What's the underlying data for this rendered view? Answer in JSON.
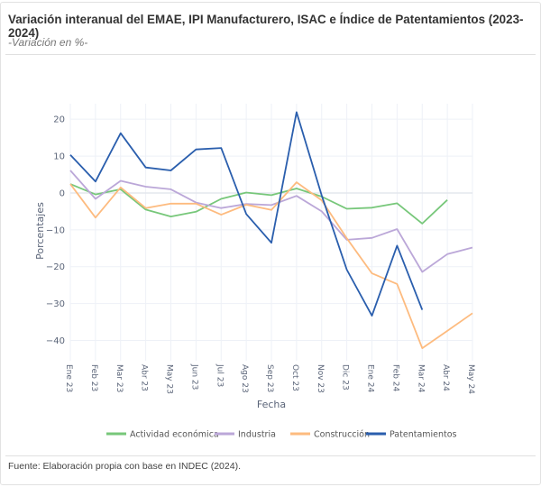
{
  "header": {
    "title": "Variación interanual del EMAE, IPI Manufacturero, ISAC e Índice de Patentamientos (2023-2024)",
    "subtitle": "-Variación en %-"
  },
  "footer": {
    "source": "Fuente: Elaboración propia con base en INDEC (2024)."
  },
  "chart_data": {
    "type": "line",
    "title": "",
    "xlabel": "Fecha",
    "ylabel": "Porcentajes",
    "ylim": [
      -45.5,
      24.2
    ],
    "yticks": [
      20,
      10,
      0,
      -10,
      -20,
      -30,
      -40
    ],
    "grid": true,
    "legend_position": "bottom",
    "categories": [
      "Ene 23",
      "Feb 23",
      "Mar 23",
      "Abr 23",
      "May 23",
      "Jun 23",
      "Jul 23",
      "Ago 23",
      "Sep 23",
      "Oct 23",
      "Nov 23",
      "Dic 23",
      "Ene 24",
      "Feb 24",
      "Mar 24",
      "Abr 24",
      "May 24"
    ],
    "series": [
      {
        "name": "Actividad económica",
        "color": "#77c77a",
        "values": [
          2.4,
          -0.4,
          1.0,
          -4.5,
          -6.4,
          -5.1,
          -1.6,
          0.1,
          -0.6,
          1.2,
          -1.0,
          -4.3,
          -4.0,
          -2.8,
          -8.3,
          -1.9,
          null
        ]
      },
      {
        "name": "Industria",
        "color": "#bba7d8",
        "values": [
          6.1,
          -1.6,
          3.3,
          1.7,
          1.0,
          -2.6,
          -4.1,
          -3.0,
          -3.3,
          -0.8,
          -5.0,
          -12.7,
          -12.2,
          -9.8,
          -21.4,
          -16.6,
          -14.8
        ]
      },
      {
        "name": "Construcción",
        "color": "#fdbb7f",
        "values": [
          2.4,
          -6.7,
          1.5,
          -4.1,
          -2.9,
          -2.9,
          -5.9,
          -3.2,
          -4.6,
          2.9,
          -2.0,
          -12.3,
          -21.8,
          -24.7,
          -42.1,
          -37.4,
          -32.6
        ]
      },
      {
        "name": "Patentamientos",
        "color": "#2a5ead",
        "values": [
          10.3,
          3.1,
          16.2,
          6.9,
          6.1,
          11.8,
          12.2,
          -5.7,
          -13.5,
          21.9,
          -0.7,
          -20.8,
          -33.3,
          -14.3,
          -31.7,
          null,
          null
        ]
      }
    ]
  }
}
